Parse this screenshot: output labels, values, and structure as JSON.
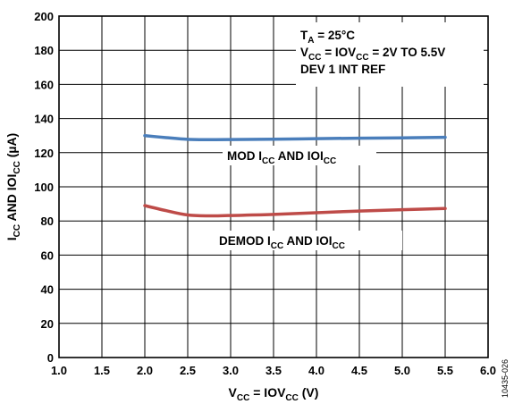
{
  "chart_data": {
    "type": "line",
    "xlim": [
      1.0,
      6.0
    ],
    "ylim": [
      0,
      200
    ],
    "x_ticks": [
      "1.0",
      "1.5",
      "2.0",
      "2.5",
      "3.0",
      "3.5",
      "4.0",
      "4.5",
      "5.0",
      "5.5",
      "6.0"
    ],
    "y_ticks": [
      "0",
      "20",
      "40",
      "60",
      "80",
      "100",
      "120",
      "140",
      "160",
      "180",
      "200"
    ],
    "grid": true,
    "xlabel": {
      "main": "V",
      "sub": "CC",
      "mid": " = IOV",
      "sub2": "CC",
      "end": " (V)"
    },
    "ylabel": {
      "p1": "I",
      "s1": "CC",
      "p2": " AND IOI",
      "s2": "CC",
      "p3": " (µA)"
    },
    "conditions": {
      "line1": {
        "main": "T",
        "sub": "A",
        "end": " = 25°C"
      },
      "line2": {
        "main": "V",
        "sub": "CC",
        "mid": " = IOV",
        "sub2": "CC",
        "end": " = 2V TO 5.5V"
      },
      "line3": "DEV 1 INT REF"
    },
    "series": [
      {
        "name": "MOD ICC AND IOICC",
        "color": "#4a7ebb",
        "label": {
          "p1": "MOD I",
          "s1": "CC",
          "p2": " AND IOI",
          "s2": "CC"
        },
        "x": [
          2.0,
          2.25,
          2.5,
          2.75,
          3.0,
          3.5,
          4.0,
          4.5,
          5.0,
          5.5
        ],
        "y": [
          130,
          128.8,
          127.8,
          127.6,
          127.7,
          127.9,
          128.2,
          128.5,
          128.7,
          129
        ]
      },
      {
        "name": "DEMOD ICC AND IOICC",
        "color": "#be4b48",
        "label": {
          "p1": "DEMOD I",
          "s1": "CC",
          "p2": " AND IOI",
          "s2": "CC"
        },
        "x": [
          2.0,
          2.25,
          2.5,
          2.75,
          3.0,
          3.5,
          4.0,
          4.5,
          5.0,
          5.5
        ],
        "y": [
          89,
          86,
          83.5,
          83,
          83.2,
          83.8,
          84.8,
          85.8,
          86.6,
          87.3
        ]
      }
    ]
  },
  "figure_id": "10435-026"
}
